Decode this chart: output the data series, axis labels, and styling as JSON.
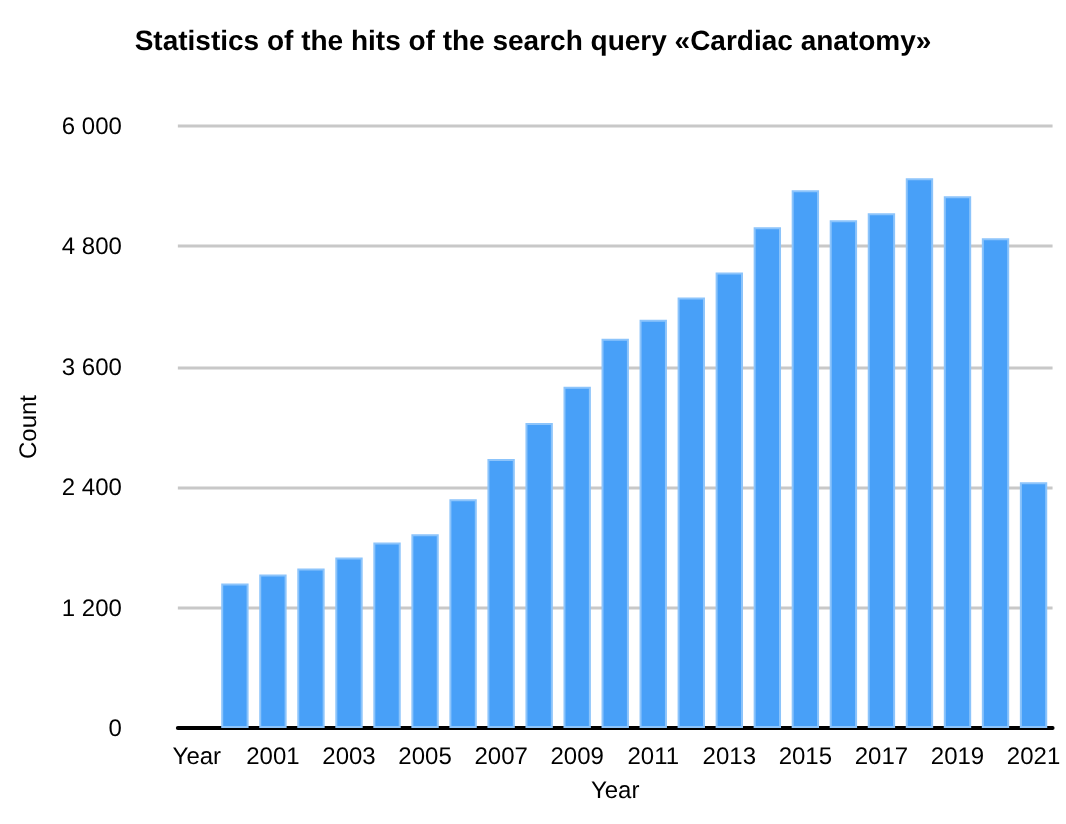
{
  "chart_data": {
    "type": "bar",
    "title": "Statistics of the hits of the search query «Cardiac anatomy»",
    "xlabel": "Year",
    "ylabel": "Count",
    "categories": [
      "Year",
      null,
      "2001",
      null,
      "2003",
      null,
      "2005",
      null,
      "2007",
      null,
      "2009",
      null,
      "2011",
      null,
      "2013",
      null,
      "2015",
      null,
      "2017",
      null,
      "2019",
      null,
      "2021"
    ],
    "values": [
      null,
      1440,
      1530,
      1590,
      1700,
      1850,
      1930,
      2280,
      2680,
      3040,
      3400,
      3880,
      4070,
      4290,
      4540,
      4990,
      5360,
      5060,
      5130,
      5480,
      5300,
      4880,
      2450
    ],
    "color": "#48a0f8",
    "ylim": [
      0,
      6000
    ],
    "yticks": [
      {
        "value": 0,
        "label": "0"
      },
      {
        "value": 1200,
        "label": "1 200"
      },
      {
        "value": 2400,
        "label": "2 400"
      },
      {
        "value": 3600,
        "label": "3 600"
      },
      {
        "value": 4800,
        "label": "4 800"
      },
      {
        "value": 6000,
        "label": "6 000"
      }
    ],
    "grid": "y"
  }
}
